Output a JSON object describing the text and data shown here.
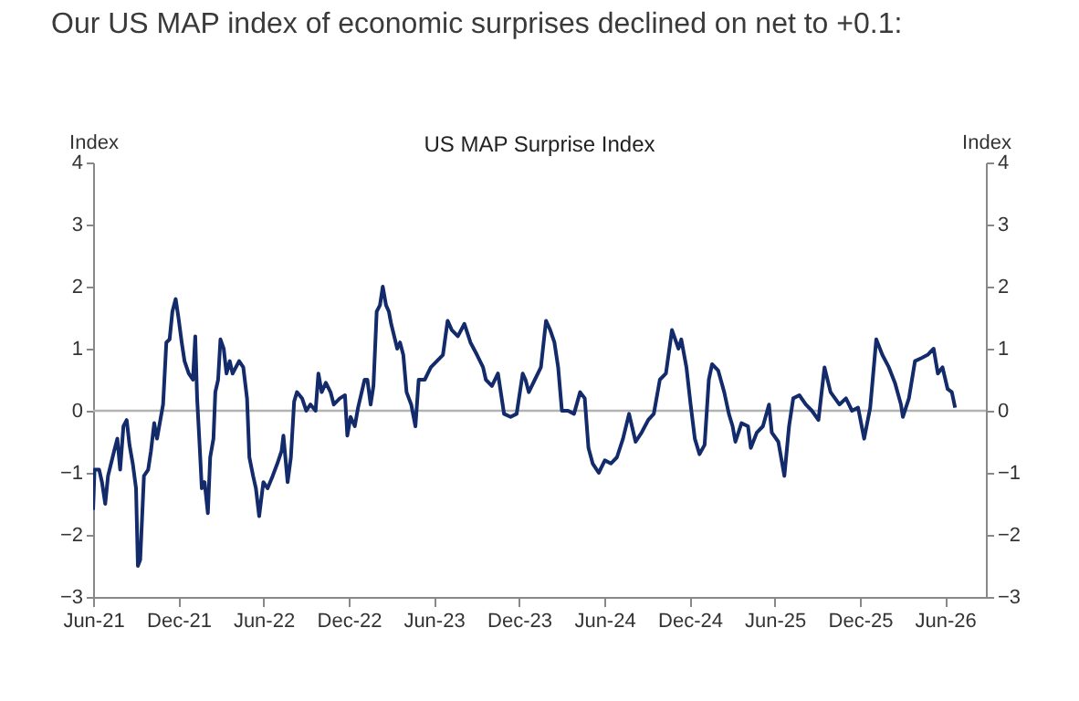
{
  "chart_data": {
    "type": "line",
    "title": "Our US MAP index of economic surprises declined on net to +0.1:",
    "subtitle": "US MAP Surprise Index",
    "ylabel": "Index",
    "y2label": "Index",
    "xlim": [
      "2021-06-01",
      "2026-08-28"
    ],
    "xticks": [
      {
        "value": "2021-06-01",
        "label": "Jun-21"
      },
      {
        "value": "2021-12-01",
        "label": "Dec-21"
      },
      {
        "value": "2022-06-01",
        "label": "Jun-22"
      },
      {
        "value": "2022-12-01",
        "label": "Dec-22"
      },
      {
        "value": "2023-06-01",
        "label": "Jun-23"
      },
      {
        "value": "2023-12-01",
        "label": "Dec-23"
      },
      {
        "value": "2024-06-01",
        "label": "Jun-24"
      },
      {
        "value": "2024-12-01",
        "label": "Dec-24"
      },
      {
        "value": "2025-06-01",
        "label": "Jun-25"
      },
      {
        "value": "2025-12-01",
        "label": "Dec-25"
      },
      {
        "value": "2026-06-01",
        "label": "Jun-26"
      }
    ],
    "ylim": [
      -3,
      4
    ],
    "yticks": [
      -3,
      -2,
      -1,
      0,
      1,
      2,
      3,
      4
    ],
    "y2lim": [
      -3,
      4
    ],
    "y2ticks": [
      -3,
      -2,
      -1,
      0,
      1,
      2,
      3,
      4
    ],
    "grid": false,
    "ref_lines": [
      {
        "axis": "y2",
        "value": 0,
        "color": "#b3b3b3"
      }
    ],
    "series": [
      {
        "color": "#132a6b",
        "x": [
          "2021-06-01",
          "2021-06-04",
          "2021-06-14",
          "2021-06-20",
          "2021-06-27",
          "2021-07-03",
          "2021-07-16",
          "2021-07-23",
          "2021-07-29",
          "2021-08-05",
          "2021-08-12",
          "2021-08-18",
          "2021-08-25",
          "2021-09-01",
          "2021-09-05",
          "2021-09-10",
          "2021-09-18",
          "2021-09-27",
          "2021-10-03",
          "2021-10-10",
          "2021-10-16",
          "2021-10-29",
          "2021-11-05",
          "2021-11-12",
          "2021-11-18",
          "2021-11-25",
          "2021-12-01",
          "2021-12-08",
          "2021-12-14",
          "2021-12-23",
          "2022-01-01",
          "2022-01-06",
          "2022-01-10",
          "2022-01-16",
          "2022-01-20",
          "2022-01-26",
          "2022-02-02",
          "2022-02-07",
          "2022-02-14",
          "2022-02-18",
          "2022-02-24",
          "2022-03-01",
          "2022-03-08",
          "2022-03-14",
          "2022-03-21",
          "2022-03-27",
          "2022-04-10",
          "2022-04-19",
          "2022-04-27",
          "2022-05-02",
          "2022-05-10",
          "2022-05-16",
          "2022-05-23",
          "2022-06-01",
          "2022-06-10",
          "2022-06-21",
          "2022-07-01",
          "2022-07-10",
          "2022-07-14",
          "2022-07-23",
          "2022-07-30",
          "2022-08-06",
          "2022-08-12",
          "2022-08-23",
          "2022-09-01",
          "2022-09-10",
          "2022-09-21",
          "2022-09-27",
          "2022-10-04",
          "2022-10-13",
          "2022-10-23",
          "2022-10-30",
          "2022-11-12",
          "2022-11-23",
          "2022-11-28",
          "2022-12-05",
          "2022-12-14",
          "2022-12-21",
          "2023-01-04",
          "2023-01-10",
          "2023-01-17",
          "2023-01-23",
          "2023-01-30",
          "2023-02-06",
          "2023-02-12",
          "2023-02-19",
          "2023-02-25",
          "2023-03-02",
          "2023-03-15",
          "2023-03-21",
          "2023-03-28",
          "2023-04-04",
          "2023-04-14",
          "2023-04-23",
          "2023-04-30",
          "2023-05-13",
          "2023-05-26",
          "2023-06-08",
          "2023-06-21",
          "2023-07-01",
          "2023-07-10",
          "2023-07-23",
          "2023-08-06",
          "2023-08-19",
          "2023-09-02",
          "2023-09-15",
          "2023-09-21",
          "2023-10-04",
          "2023-10-17",
          "2023-10-30",
          "2023-11-13",
          "2023-11-26",
          "2023-12-09",
          "2023-12-15",
          "2023-12-22",
          "2024-01-04",
          "2024-01-17",
          "2024-01-28",
          "2024-02-06",
          "2024-02-15",
          "2024-02-23",
          "2024-03-02",
          "2024-03-15",
          "2024-03-28",
          "2024-04-10",
          "2024-04-20",
          "2024-04-28",
          "2024-05-07",
          "2024-05-20",
          "2024-06-02",
          "2024-06-15",
          "2024-06-28",
          "2024-07-11",
          "2024-07-24",
          "2024-08-07",
          "2024-08-20",
          "2024-09-03",
          "2024-09-15",
          "2024-09-28",
          "2024-10-11",
          "2024-10-24",
          "2024-11-07",
          "2024-11-13",
          "2024-11-24",
          "2024-12-03",
          "2024-12-12",
          "2024-12-22",
          "2025-01-02",
          "2025-01-11",
          "2025-01-18",
          "2025-01-31",
          "2025-02-13",
          "2025-02-23",
          "2025-03-03",
          "2025-03-09",
          "2025-03-22",
          "2025-04-05",
          "2025-04-11",
          "2025-04-24",
          "2025-05-07",
          "2025-05-20",
          "2025-05-26",
          "2025-06-09",
          "2025-06-22",
          "2025-07-02",
          "2025-07-11",
          "2025-07-24",
          "2025-08-07",
          "2025-08-20",
          "2025-09-03",
          "2025-09-16",
          "2025-09-29",
          "2025-10-18",
          "2025-11-01",
          "2025-11-14",
          "2025-11-27",
          "2025-12-10",
          "2025-12-23",
          "2026-01-05",
          "2026-01-18",
          "2026-02-01",
          "2026-02-14",
          "2026-02-27",
          "2026-03-03",
          "2026-03-16",
          "2026-03-29",
          "2026-04-12",
          "2026-04-25",
          "2026-05-08",
          "2026-05-17",
          "2026-05-27",
          "2026-06-07",
          "2026-06-16",
          "2026-06-23"
        ],
        "values": [
          -1.6,
          -0.95,
          -0.95,
          -1.15,
          -1.5,
          -1.05,
          -0.65,
          -0.45,
          -0.95,
          -0.25,
          -0.15,
          -0.55,
          -0.85,
          -1.25,
          -2.5,
          -2.4,
          -1.05,
          -0.95,
          -0.65,
          -0.2,
          -0.45,
          0.1,
          1.1,
          1.15,
          1.6,
          1.8,
          1.5,
          1.1,
          0.8,
          0.6,
          0.5,
          1.2,
          0.2,
          -0.65,
          -1.25,
          -1.15,
          -1.65,
          -0.75,
          -0.45,
          0.3,
          0.5,
          1.15,
          1.0,
          0.6,
          0.8,
          0.6,
          0.8,
          0.7,
          0.2,
          -0.75,
          -1.05,
          -1.25,
          -1.7,
          -1.15,
          -1.25,
          -1.05,
          -0.85,
          -0.65,
          -0.4,
          -1.15,
          -0.75,
          0.15,
          0.3,
          0.2,
          0.0,
          0.1,
          0.0,
          0.6,
          0.3,
          0.45,
          0.3,
          0.1,
          0.2,
          0.25,
          -0.4,
          -0.1,
          -0.25,
          0.05,
          0.5,
          0.5,
          0.1,
          0.4,
          1.6,
          1.7,
          2.0,
          1.7,
          1.6,
          1.4,
          1.0,
          1.1,
          0.9,
          0.3,
          0.1,
          -0.25,
          0.5,
          0.5,
          0.7,
          0.8,
          0.9,
          1.45,
          1.3,
          1.2,
          1.4,
          1.1,
          0.9,
          0.7,
          0.5,
          0.4,
          0.6,
          -0.05,
          -0.1,
          -0.05,
          0.6,
          0.5,
          0.3,
          0.5,
          0.7,
          1.45,
          1.3,
          1.1,
          0.7,
          0.0,
          0.0,
          -0.05,
          0.3,
          0.2,
          -0.6,
          -0.85,
          -1.0,
          -0.8,
          -0.85,
          -0.75,
          -0.45,
          -0.05,
          -0.5,
          -0.35,
          -0.15,
          -0.05,
          0.5,
          0.6,
          1.3,
          1.0,
          1.15,
          0.7,
          0.1,
          -0.45,
          -0.7,
          -0.55,
          0.5,
          0.75,
          0.65,
          0.3,
          -0.05,
          -0.25,
          -0.5,
          -0.2,
          -0.25,
          -0.6,
          -0.35,
          -0.25,
          0.1,
          -0.35,
          -0.5,
          -1.05,
          -0.25,
          0.2,
          0.25,
          0.1,
          0.0,
          -0.15,
          0.7,
          0.3,
          0.1,
          0.2,
          0.0,
          0.05,
          -0.45,
          0.05,
          1.15,
          0.9,
          0.7,
          0.45,
          0.1,
          -0.1,
          0.2,
          0.8,
          0.85,
          0.9,
          1.0,
          0.6,
          0.7,
          0.35,
          0.3,
          0.05
        ]
      }
    ]
  }
}
